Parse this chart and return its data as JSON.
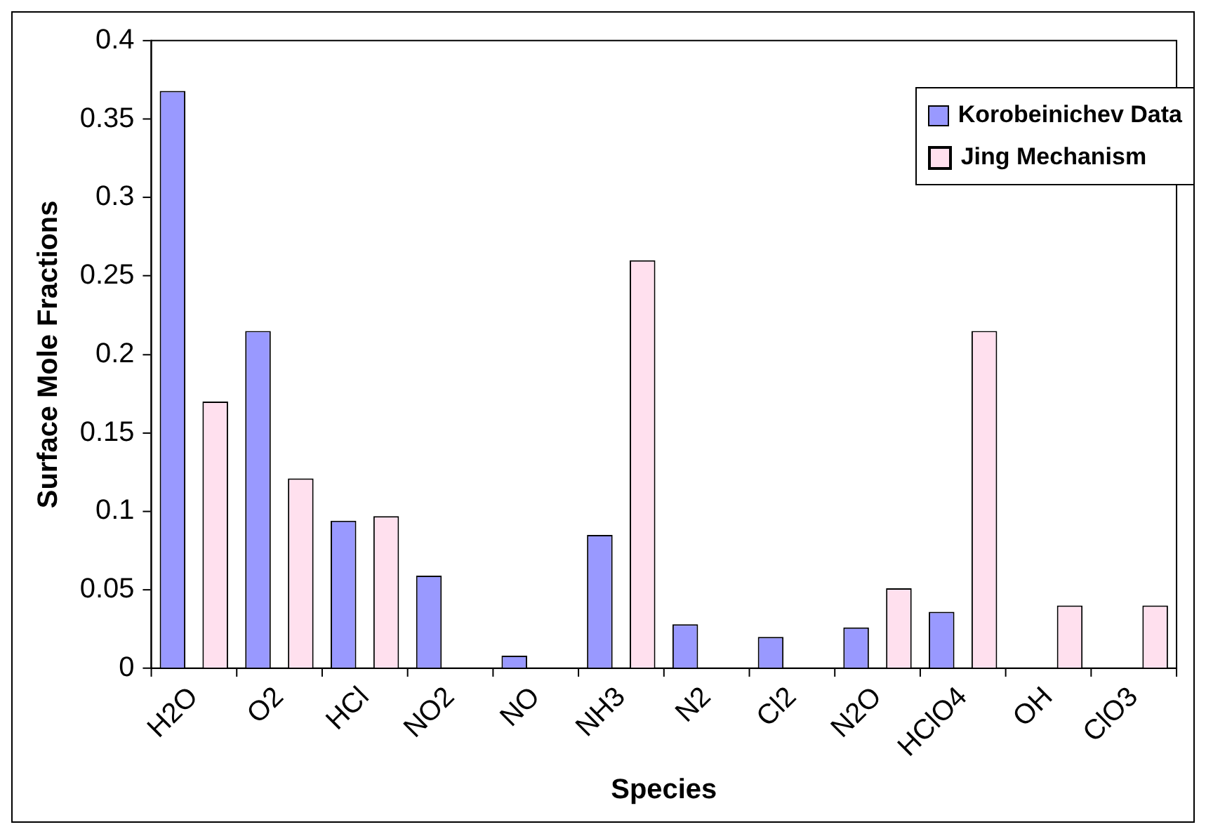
{
  "chart_data": {
    "type": "bar",
    "xlabel": "Species",
    "ylabel": "Surface Mole Fractions",
    "categories": [
      "H2O",
      "O2",
      "HCl",
      "NO2",
      "NO",
      "NH3",
      "N2",
      "Cl2",
      "N2O",
      "HClO4",
      "OH",
      "ClO3"
    ],
    "series": [
      {
        "name": "Korobeinichev Data",
        "color": "#9999ff",
        "values": [
          0.368,
          0.215,
          0.094,
          0.059,
          0.008,
          0.085,
          0.028,
          0.02,
          0.026,
          0.036,
          null,
          null
        ]
      },
      {
        "name": "Jing Mechanism",
        "color": "#ffe0ee",
        "values": [
          0.17,
          0.121,
          0.097,
          null,
          null,
          0.26,
          null,
          null,
          0.051,
          0.215,
          0.04,
          0.04
        ]
      }
    ],
    "ylim": [
      0,
      0.4
    ],
    "yticks": [
      0,
      0.05,
      0.1,
      0.15,
      0.2,
      0.25,
      0.3,
      0.35,
      0.4
    ],
    "grid": false,
    "legend": "top right"
  }
}
